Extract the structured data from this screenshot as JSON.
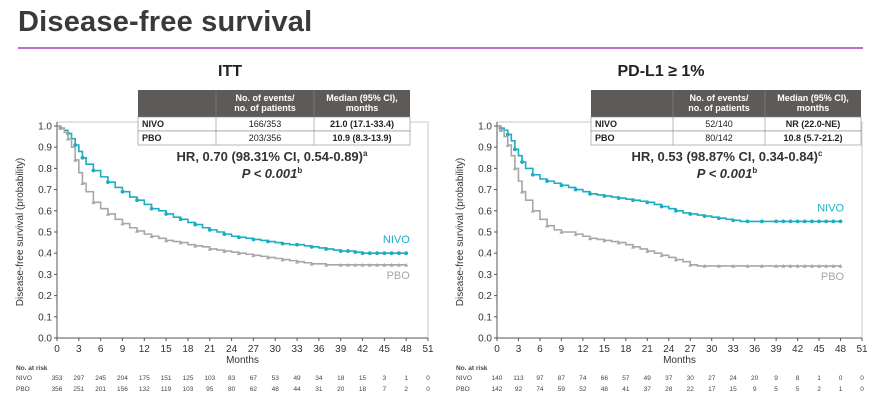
{
  "slide": {
    "title": "Disease-free survival"
  },
  "colors": {
    "nivo": "#1aaec2",
    "pbo": "#a7a7a7",
    "accent": "#b86fd0",
    "table_header": "#5e5a58"
  },
  "chart_data": [
    {
      "type": "line",
      "title": "ITT",
      "xlabel": "Months",
      "ylabel": "Disease-free survival (probability)",
      "xlim": [
        0,
        51
      ],
      "ylim": [
        0,
        1.0
      ],
      "xticks": [
        "0",
        "3",
        "6",
        "9",
        "12",
        "15",
        "18",
        "21",
        "24",
        "27",
        "30",
        "33",
        "36",
        "39",
        "42",
        "45",
        "48",
        "51"
      ],
      "yticks": [
        "0.0",
        "0.1",
        "0.2",
        "0.3",
        "0.4",
        "0.5",
        "0.6",
        "0.7",
        "0.8",
        "0.9",
        "1.0"
      ],
      "table": {
        "headers": [
          "",
          "No. of events/\nno. of patients",
          "Median (95% CI),\nmonths"
        ],
        "rows": [
          [
            "NIVO",
            "166/353",
            "21.0 (17.1-33.4)"
          ],
          [
            "PBO",
            "203/356",
            "10.9 (8.3-13.9)"
          ]
        ]
      },
      "hr_line": "HR, 0.70 (98.31% CI, 0.54-0.89)",
      "hr_sup": "a",
      "p_line": "P < 0.001",
      "p_sup": "b",
      "series": [
        {
          "name": "NIVO",
          "color": "#1aaec2",
          "x": [
            0,
            0.5,
            1,
            1.5,
            2,
            2.5,
            3,
            3.5,
            4,
            5,
            6,
            7,
            8,
            9,
            10,
            11,
            12,
            13,
            14,
            15,
            16,
            17,
            18,
            19,
            20,
            21,
            22,
            23,
            24,
            25,
            26,
            27,
            28,
            29,
            30,
            31,
            32,
            33,
            34,
            35,
            36,
            37,
            38,
            39,
            40,
            41,
            42,
            43,
            44,
            45,
            46,
            47,
            48
          ],
          "y": [
            1.0,
            0.99,
            0.98,
            0.965,
            0.94,
            0.91,
            0.88,
            0.85,
            0.82,
            0.79,
            0.76,
            0.735,
            0.71,
            0.69,
            0.665,
            0.65,
            0.63,
            0.61,
            0.6,
            0.585,
            0.57,
            0.56,
            0.545,
            0.535,
            0.52,
            0.51,
            0.5,
            0.49,
            0.48,
            0.475,
            0.47,
            0.465,
            0.46,
            0.455,
            0.45,
            0.445,
            0.44,
            0.44,
            0.435,
            0.43,
            0.425,
            0.42,
            0.415,
            0.41,
            0.41,
            0.405,
            0.4,
            0.4,
            0.4,
            0.4,
            0.4,
            0.4,
            0.4
          ]
        },
        {
          "name": "PBO",
          "color": "#a7a7a7",
          "x": [
            0,
            0.5,
            1,
            1.5,
            2,
            2.5,
            3,
            3.5,
            4,
            5,
            6,
            7,
            8,
            9,
            10,
            11,
            12,
            13,
            14,
            15,
            16,
            17,
            18,
            19,
            20,
            21,
            22,
            23,
            24,
            25,
            26,
            27,
            28,
            29,
            30,
            31,
            32,
            33,
            34,
            35,
            36,
            37,
            38,
            39,
            40,
            41,
            42,
            43,
            44,
            45,
            46,
            47,
            48
          ],
          "y": [
            1.0,
            0.99,
            0.97,
            0.94,
            0.9,
            0.84,
            0.78,
            0.73,
            0.69,
            0.64,
            0.61,
            0.585,
            0.56,
            0.54,
            0.52,
            0.505,
            0.49,
            0.48,
            0.47,
            0.46,
            0.455,
            0.45,
            0.44,
            0.435,
            0.43,
            0.42,
            0.415,
            0.41,
            0.405,
            0.4,
            0.395,
            0.39,
            0.385,
            0.38,
            0.375,
            0.37,
            0.365,
            0.36,
            0.355,
            0.35,
            0.35,
            0.345,
            0.345,
            0.345,
            0.345,
            0.345,
            0.345,
            0.345,
            0.345,
            0.345,
            0.345,
            0.345,
            0.345
          ]
        }
      ],
      "at_risk": {
        "header": "No. at risk",
        "rows": [
          {
            "label": "NIVO",
            "values": [
              "353",
              "297",
              "245",
              "204",
              "175",
              "151",
              "125",
              "103",
              "83",
              "67",
              "53",
              "49",
              "34",
              "18",
              "15",
              "3",
              "1",
              "0"
            ]
          },
          {
            "label": "PBO",
            "values": [
              "356",
              "251",
              "201",
              "156",
              "132",
              "119",
              "103",
              "95",
              "80",
              "62",
              "48",
              "44",
              "31",
              "20",
              "18",
              "7",
              "2",
              "0"
            ]
          }
        ]
      }
    },
    {
      "type": "line",
      "title": "PD-L1 ≥ 1%",
      "xlabel": "Months",
      "ylabel": "Disease-free survival (probability)",
      "xlim": [
        0,
        51
      ],
      "ylim": [
        0,
        1.0
      ],
      "xticks": [
        "0",
        "3",
        "6",
        "9",
        "12",
        "15",
        "18",
        "21",
        "24",
        "27",
        "30",
        "33",
        "36",
        "39",
        "42",
        "45",
        "48",
        "51"
      ],
      "yticks": [
        "0.0",
        "0.1",
        "0.2",
        "0.3",
        "0.4",
        "0.5",
        "0.6",
        "0.7",
        "0.8",
        "0.9",
        "1.0"
      ],
      "table": {
        "headers": [
          "",
          "No. of events/\nno. of patients",
          "Median (95% CI),\nmonths"
        ],
        "rows": [
          [
            "NIVO",
            "52/140",
            "NR (22.0-NE)"
          ],
          [
            "PBO",
            "80/142",
            "10.8 (5.7-21.2)"
          ]
        ]
      },
      "hr_line": "HR, 0.53 (98.87% CI, 0.34-0.84)",
      "hr_sup": "c",
      "p_line": "P < 0.001",
      "p_sup": "b",
      "series": [
        {
          "name": "NIVO",
          "color": "#1aaec2",
          "x": [
            0,
            0.5,
            1,
            1.5,
            2,
            2.5,
            3,
            3.5,
            4,
            5,
            6,
            7,
            8,
            9,
            10,
            11,
            12,
            13,
            14,
            15,
            16,
            17,
            18,
            19,
            20,
            21,
            22,
            23,
            24,
            25,
            26,
            27,
            28,
            29,
            30,
            31,
            32,
            33,
            34,
            35,
            36,
            37,
            38,
            39,
            40,
            41,
            42,
            43,
            44,
            45,
            46,
            47,
            48
          ],
          "y": [
            1.0,
            0.99,
            0.98,
            0.96,
            0.93,
            0.89,
            0.86,
            0.83,
            0.8,
            0.77,
            0.75,
            0.74,
            0.73,
            0.72,
            0.71,
            0.7,
            0.69,
            0.68,
            0.675,
            0.67,
            0.665,
            0.66,
            0.655,
            0.65,
            0.645,
            0.64,
            0.63,
            0.62,
            0.61,
            0.6,
            0.59,
            0.585,
            0.58,
            0.575,
            0.57,
            0.565,
            0.56,
            0.555,
            0.55,
            0.55,
            0.55,
            0.55,
            0.55,
            0.55,
            0.55,
            0.55,
            0.55,
            0.55,
            0.55,
            0.55,
            0.55,
            0.55,
            0.55
          ]
        },
        {
          "name": "PBO",
          "color": "#a7a7a7",
          "x": [
            0,
            0.5,
            1,
            1.5,
            2,
            2.5,
            3,
            3.5,
            4,
            5,
            6,
            7,
            8,
            9,
            10,
            11,
            12,
            13,
            14,
            15,
            16,
            17,
            18,
            19,
            20,
            21,
            22,
            23,
            24,
            25,
            26,
            27,
            28,
            29,
            30,
            31,
            32,
            33,
            34,
            35,
            36,
            37,
            38,
            39,
            40,
            41,
            42,
            43,
            44,
            45,
            46,
            47,
            48
          ],
          "y": [
            1.0,
            0.98,
            0.95,
            0.91,
            0.86,
            0.8,
            0.74,
            0.69,
            0.65,
            0.6,
            0.56,
            0.53,
            0.51,
            0.5,
            0.5,
            0.49,
            0.48,
            0.47,
            0.465,
            0.46,
            0.455,
            0.45,
            0.44,
            0.43,
            0.42,
            0.41,
            0.4,
            0.39,
            0.38,
            0.37,
            0.36,
            0.345,
            0.34,
            0.34,
            0.34,
            0.34,
            0.34,
            0.34,
            0.34,
            0.34,
            0.34,
            0.34,
            0.34,
            0.34,
            0.34,
            0.34,
            0.34,
            0.34,
            0.34,
            0.34,
            0.34,
            0.34,
            0.34
          ]
        }
      ],
      "at_risk": {
        "header": "No. at risk",
        "rows": [
          {
            "label": "NIVO",
            "values": [
              "140",
              "113",
              "97",
              "87",
              "74",
              "66",
              "57",
              "49",
              "37",
              "30",
              "27",
              "24",
              "20",
              "9",
              "8",
              "1",
              "0",
              "0"
            ]
          },
          {
            "label": "PBO",
            "values": [
              "142",
              "92",
              "74",
              "59",
              "52",
              "48",
              "41",
              "37",
              "28",
              "22",
              "17",
              "15",
              "9",
              "5",
              "5",
              "2",
              "1",
              "0"
            ]
          }
        ]
      }
    }
  ]
}
